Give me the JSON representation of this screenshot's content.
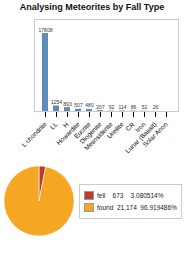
{
  "chart_data": [
    {
      "type": "bar",
      "title": "Analysing Meteorites by Fall Type",
      "categories": [
        "L chondrite",
        "LL",
        "H",
        "Howardite",
        "Eucrite",
        "Diogenite",
        "Mesosiderite",
        "Ureilite",
        "CR",
        "Iron",
        "Lunar (Basalt)",
        "Solar Anon"
      ],
      "values": [
        17808,
        1254,
        893,
        507,
        480,
        207,
        92,
        114,
        86,
        52,
        26,
        0
      ],
      "value_labels": [
        "17808",
        "1254",
        "893",
        "507",
        "480",
        "207",
        "92",
        "114",
        "86",
        "52",
        "26",
        null
      ],
      "color": "#5B8DB8",
      "ylim": [
        0,
        21013.44
      ],
      "data_labels": true,
      "tick_labels": "x",
      "grid": false
    },
    {
      "type": "pie",
      "categories": [
        "fell    673    3.080514%",
        "found  21,174  96.919486%"
      ],
      "values": [
        673,
        21174
      ],
      "colors": [
        "#C0392B",
        "#F5A623"
      ],
      "legend": "right"
    }
  ]
}
